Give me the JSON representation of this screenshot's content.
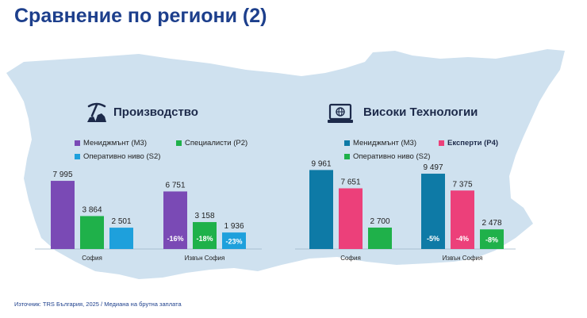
{
  "page": {
    "title": "Сравнение по региони (2)",
    "source": "Източник: TRS България, 2025 / Медиана на брутна заплата"
  },
  "colors": {
    "title": "#1d3f8c",
    "map": "#cfe1ef",
    "management_prod": "#7a4ab5",
    "specialists": "#1fb14a",
    "operative": "#1ea0dc",
    "management_tech": "#0e7aa6",
    "experts": "#ec407a",
    "operative_tech": "#1fb14a"
  },
  "icons": {
    "production": "pickaxe-rocks-icon",
    "tech": "laptop-globe-icon"
  },
  "chart_data": [
    {
      "type": "bar",
      "title": "Производство",
      "categories": [
        "София",
        "Извън София"
      ],
      "series": [
        {
          "name": "Мениджмънт (M3)",
          "color": "#7a4ab5",
          "values": [
            7995,
            6751
          ],
          "labels": [
            "7 995",
            "6 751"
          ],
          "diffs": [
            "",
            "-16%"
          ]
        },
        {
          "name": "Специалисти (P2)",
          "color": "#1fb14a",
          "values": [
            3864,
            3158
          ],
          "labels": [
            "3 864",
            "3 158"
          ],
          "diffs": [
            "",
            "-18%"
          ]
        },
        {
          "name": "Оперативно ниво (S2)",
          "color": "#1ea0dc",
          "values": [
            2501,
            1936
          ],
          "labels": [
            "2 501",
            "1 936"
          ],
          "diffs": [
            "",
            "-23%"
          ]
        }
      ]
    },
    {
      "type": "bar",
      "title": "Високи Технологии",
      "categories": [
        "София",
        "Извън София"
      ],
      "series": [
        {
          "name": "Мениджмънт (M3)",
          "color": "#0e7aa6",
          "values": [
            9961,
            9497
          ],
          "labels": [
            "9 961",
            "9 497"
          ],
          "diffs": [
            "",
            "-5%"
          ]
        },
        {
          "name": "Експерти (P4)",
          "color": "#ec407a",
          "values": [
            7651,
            7375
          ],
          "labels": [
            "7 651",
            "7 375"
          ],
          "diffs": [
            "",
            "-4%"
          ]
        },
        {
          "name": "Оперативно ниво (S2)",
          "color": "#1fb14a",
          "values": [
            2700,
            2478
          ],
          "labels": [
            "2 700",
            "2 478"
          ],
          "diffs": [
            "",
            "-8%"
          ]
        }
      ]
    }
  ]
}
